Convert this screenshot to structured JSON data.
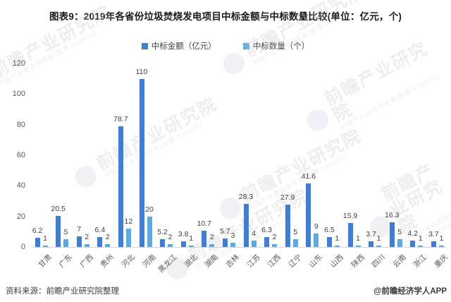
{
  "title": "图表9：2019年各省份垃圾焚烧发电项目中标金额与中标数量比较(单位：亿元，个)",
  "legend": {
    "items": [
      {
        "label": "中标金额（亿元）",
        "color": "#3d7eda"
      },
      {
        "label": "中标数量（个）",
        "color": "#57abe9"
      }
    ]
  },
  "chart_data": {
    "type": "bar",
    "title": "2019年各省份垃圾焚烧发电项目中标金额与中标数量比较",
    "unit_note": "单位：亿元，个",
    "categories": [
      "甘肃",
      "广东",
      "广西",
      "贵州",
      "河北",
      "河南",
      "黑龙江",
      "湖北",
      "湖南",
      "吉林",
      "江苏",
      "江西",
      "辽宁",
      "山东",
      "山西",
      "陕西",
      "四川",
      "云南",
      "浙江",
      "重庆"
    ],
    "series": [
      {
        "name": "中标金额（亿元）",
        "color": "#3d7eda",
        "values": [
          6.2,
          20.5,
          7,
          6.4,
          78.7,
          110,
          5.2,
          3.8,
          10.7,
          5.7,
          28.3,
          6.3,
          27.9,
          41.6,
          6.5,
          15.9,
          3.7,
          16.3,
          4.2,
          3.7
        ]
      },
      {
        "name": "中标数量（个）",
        "color": "#57abe9",
        "values": [
          1,
          5,
          2,
          2,
          12,
          20,
          2,
          1,
          2,
          3,
          4,
          2,
          5,
          9,
          1,
          1,
          1,
          5,
          1,
          1
        ]
      }
    ],
    "ylim": [
      0,
      120
    ],
    "yticks": [
      0,
      20,
      40,
      60,
      80,
      100,
      120
    ],
    "grid": false,
    "legend_position": "top-center",
    "data_labels": true
  },
  "watermark": {
    "main": "前瞻产业研究院",
    "sub": "中国产业咨询领导者(股票:839599)"
  },
  "footer": {
    "source": "资料来源：前瞻产业研究院整理",
    "handle": "@前瞻经济学人APP"
  }
}
